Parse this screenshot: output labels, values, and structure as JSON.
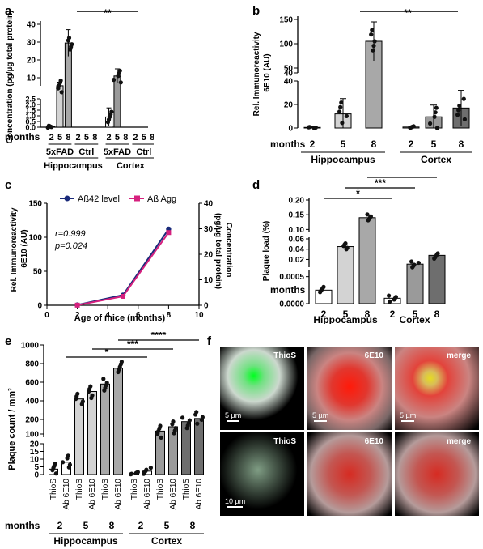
{
  "panel_letters": [
    "a",
    "b",
    "c",
    "d",
    "e",
    "f"
  ],
  "chart_data": [
    {
      "id": "a",
      "type": "bar",
      "ylabel": "Concentration (pg/µg total protein)",
      "yticks_upper": [
        10,
        20,
        30,
        40
      ],
      "yticks_lower": [
        "0.0",
        "0.5",
        "1.0",
        "1.5",
        "2.0",
        "2.5"
      ],
      "months_label": "months",
      "months": [
        "2",
        "5",
        "8",
        "2",
        "5",
        "8",
        "2",
        "5",
        "8",
        "2",
        "5",
        "8"
      ],
      "means": [
        0.05,
        5.5,
        29.5,
        0,
        0,
        0,
        0.9,
        11,
        0,
        0,
        0,
        0
      ],
      "sds": [
        0.05,
        2.0,
        7.5,
        0,
        0,
        0,
        0.8,
        4.0,
        0,
        0,
        0,
        0
      ],
      "group_labels": [
        "5xFAD",
        "Ctrl",
        "5xFAD",
        "Ctrl"
      ],
      "region_labels": [
        "Hippocampus",
        "Cortex"
      ],
      "significance": [
        "**"
      ]
    },
    {
      "id": "b",
      "type": "bar",
      "ylabel": "Rel. Immunoreactivity 6E10 (AU)",
      "yticks_upper": [
        40,
        50,
        100,
        150
      ],
      "yticks_lower": [
        0,
        20,
        40
      ],
      "months_label": "months",
      "months": [
        "2",
        "5",
        "8",
        "2",
        "5",
        "8"
      ],
      "means": [
        0.5,
        12,
        105,
        0.8,
        9.5,
        17
      ],
      "sds": [
        0.8,
        13,
        40,
        0.8,
        10,
        15
      ],
      "region_labels": [
        "Hippocampus",
        "Cortex"
      ],
      "significance": [
        "**"
      ]
    },
    {
      "id": "c",
      "type": "line",
      "xlabel": "Age of mice (months)",
      "ylabel_left": "Rel. Immunoreactivity 6E10 (AU)",
      "ylabel_right": "Concentration (pg/µg total protein)",
      "xlim": [
        0,
        10
      ],
      "ylim_left": [
        0,
        150
      ],
      "ylim_right": [
        0,
        40
      ],
      "xticks": [
        0,
        2,
        4,
        6,
        8,
        10
      ],
      "yticks_left": [
        0,
        50,
        100,
        150
      ],
      "yticks_right": [
        0,
        10,
        20,
        30,
        40
      ],
      "stat_r": "r=0.999",
      "stat_p": "p=0.024",
      "series": [
        {
          "name": "Aß42 level",
          "color": "#1a2a7a",
          "x": [
            2,
            5,
            8
          ],
          "y": [
            0.5,
            15,
            112
          ],
          "axis": "left"
        },
        {
          "name": "Aß Agg",
          "color": "#d6207e",
          "x": [
            2,
            5,
            8
          ],
          "y": [
            0.05,
            3.5,
            28.5
          ],
          "axis": "right"
        }
      ]
    },
    {
      "id": "d",
      "type": "bar",
      "ylabel": "Plaque load (%)",
      "yticks_top": [
        "0.10",
        "0.15",
        "0.20"
      ],
      "yticks_mid": [
        "0.02",
        "0.04",
        "0.06"
      ],
      "yticks_bot": [
        "0.0000",
        "0.0005"
      ],
      "months_label": "months",
      "months": [
        "2",
        "5",
        "8",
        "2",
        "5",
        "8"
      ],
      "means": [
        0.00025,
        0.045,
        0.14,
        0.0001,
        0.011,
        0.028
      ],
      "region_labels": [
        "Hippocampus",
        "Cortex"
      ],
      "significance": [
        "*",
        "***",
        "****"
      ]
    },
    {
      "id": "e",
      "type": "bar",
      "ylabel": "Plaque count / mm³",
      "yticks_upper": [
        100,
        200,
        400,
        600,
        800,
        1000
      ],
      "yticks_lower": [
        0,
        5,
        10,
        15,
        20
      ],
      "bar_labels": [
        "ThioS",
        "Ab 6E10",
        "ThioS",
        "Ab 6E10",
        "ThioS",
        "Ab 6E10",
        "ThioS",
        "Ab 6E10",
        "ThioS",
        "Ab 6E10",
        "ThioS",
        "Ab 6E10"
      ],
      "months_label": "months",
      "months": [
        "2",
        "5",
        "8",
        "2",
        "5",
        "8"
      ],
      "means": [
        3.5,
        8,
        420,
        500,
        580,
        750,
        0.8,
        2.2,
        120,
        150,
        185,
        210
      ],
      "region_labels": [
        "Hippocampus",
        "Cortex"
      ],
      "significance": [
        "*",
        "***",
        "****"
      ]
    }
  ],
  "micrographs": {
    "labels": [
      "ThioS",
      "6E10",
      "merge",
      "ThioS",
      "6E10",
      "merge"
    ],
    "scale_top": "5 µm",
    "scale_bottom": "10 µm",
    "colors": {
      "green": "#00ff20",
      "red": "#ff1a0a",
      "merge": "#e6dc20"
    }
  }
}
